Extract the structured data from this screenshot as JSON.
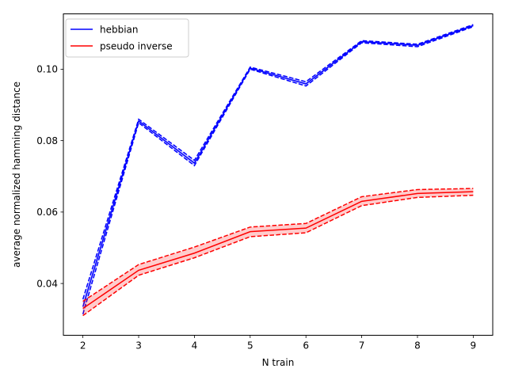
{
  "chart_data": {
    "type": "line",
    "xlabel": "N train",
    "ylabel": "average normalized hamming distance",
    "xlim": [
      1.65,
      9.35
    ],
    "ylim": [
      0.0255,
      0.1155
    ],
    "x_ticks": [
      2,
      3,
      4,
      5,
      6,
      7,
      8,
      9
    ],
    "y_ticks": [
      0.04,
      0.06,
      0.08,
      0.1
    ],
    "y_tick_labels": [
      "0.04",
      "0.06",
      "0.08",
      "0.10"
    ],
    "grid": false,
    "legend_position": "top-left",
    "x": [
      2,
      3,
      4,
      5,
      6,
      7,
      8,
      9
    ],
    "series": [
      {
        "name": "hebbian",
        "color": "#0000ff",
        "mean": [
          0.0335,
          0.0855,
          0.0737,
          0.1003,
          0.0959,
          0.1077,
          0.1067,
          0.1122
        ],
        "upper": [
          0.0356,
          0.086,
          0.0745,
          0.1006,
          0.0965,
          0.108,
          0.107,
          0.1125
        ],
        "lower": [
          0.0314,
          0.085,
          0.073,
          0.1,
          0.0953,
          0.1074,
          0.1063,
          0.1119
        ]
      },
      {
        "name": "pseudo inverse",
        "color": "#ff0000",
        "mean": [
          0.033,
          0.0437,
          0.0485,
          0.0545,
          0.0555,
          0.063,
          0.0652,
          0.0657
        ],
        "upper": [
          0.035,
          0.0453,
          0.0502,
          0.0558,
          0.0568,
          0.0643,
          0.0663,
          0.0666
        ],
        "lower": [
          0.031,
          0.0423,
          0.0472,
          0.0531,
          0.0542,
          0.0618,
          0.0641,
          0.0647
        ]
      }
    ]
  }
}
